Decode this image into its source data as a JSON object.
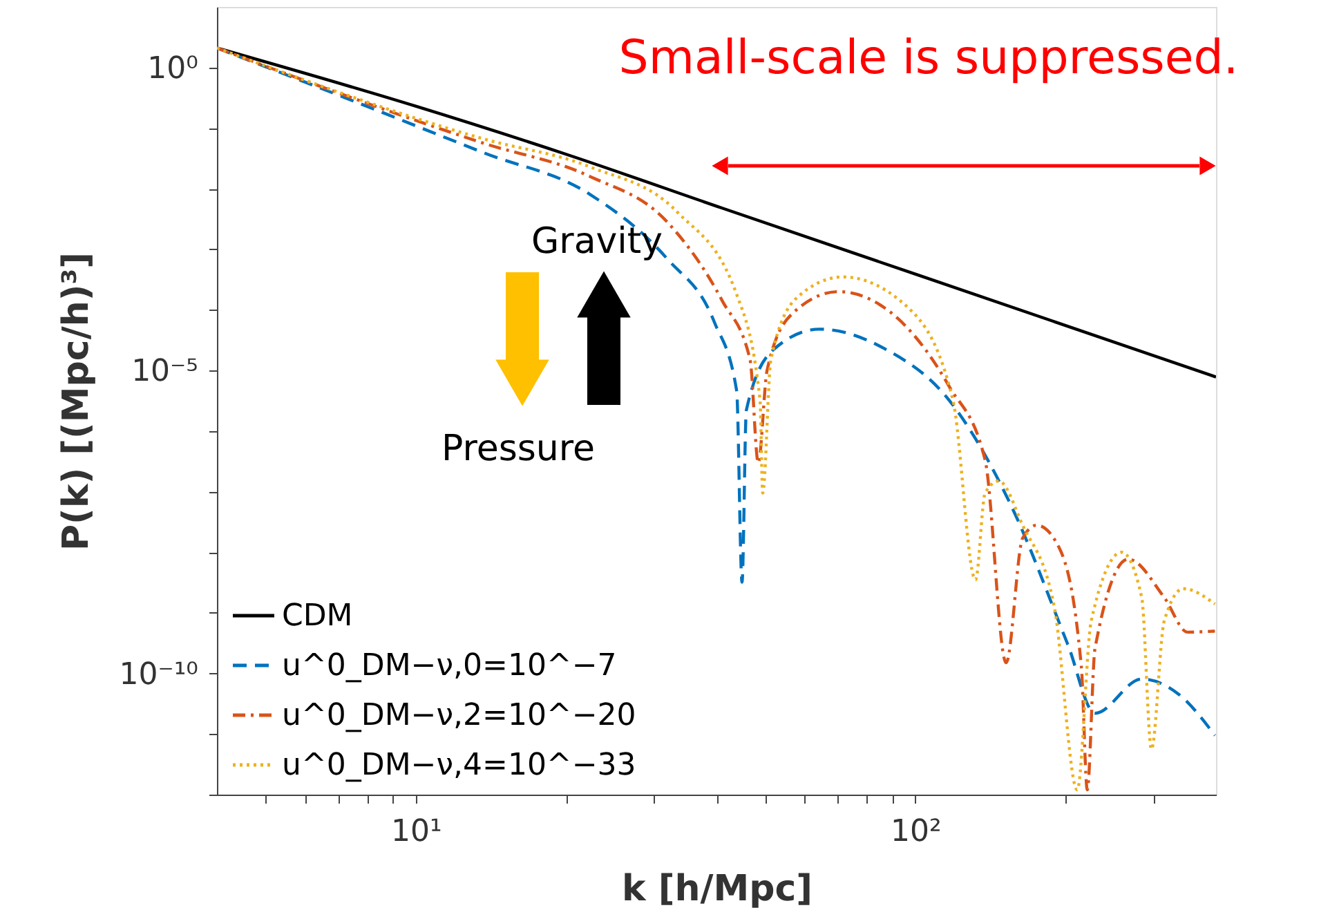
{
  "chart_data": {
    "type": "line",
    "xlabel": "k [h/Mpc]",
    "ylabel": "P(k) [(Mpc/h)³]",
    "log": "xy",
    "grid": false,
    "legend": "bottom left",
    "xlim": [
      4,
      400
    ],
    "ylim": [
      1e-12,
      10
    ],
    "xticks": [
      {
        "value": 5,
        "label": null
      },
      {
        "value": 6,
        "label": null
      },
      {
        "value": 7,
        "label": null
      },
      {
        "value": 8,
        "label": null
      },
      {
        "value": 9,
        "label": null
      },
      {
        "value": 10,
        "label": "10¹"
      },
      {
        "value": 20,
        "label": null
      },
      {
        "value": 30,
        "label": null
      },
      {
        "value": 40,
        "label": null
      },
      {
        "value": 50,
        "label": null
      },
      {
        "value": 60,
        "label": null
      },
      {
        "value": 70,
        "label": null
      },
      {
        "value": 80,
        "label": null
      },
      {
        "value": 90,
        "label": null
      },
      {
        "value": 100,
        "label": "10²"
      },
      {
        "value": 200,
        "label": null
      },
      {
        "value": 300,
        "label": null
      }
    ],
    "yticks": [
      {
        "value": 1e-12,
        "label": null
      },
      {
        "value": 1e-11,
        "label": null
      },
      {
        "value": 1e-10,
        "label": "10⁻¹⁰"
      },
      {
        "value": 1e-09,
        "label": null
      },
      {
        "value": 1e-08,
        "label": null
      },
      {
        "value": 1e-07,
        "label": null
      },
      {
        "value": 1e-06,
        "label": null
      },
      {
        "value": 1e-05,
        "label": "10⁻⁵"
      },
      {
        "value": 0.0001,
        "label": null
      },
      {
        "value": 0.001,
        "label": null
      },
      {
        "value": 0.01,
        "label": null
      },
      {
        "value": 0.1,
        "label": null
      },
      {
        "value": 1,
        "label": "10⁰"
      }
    ],
    "annotations": [
      "Small-scale is suppressed.",
      "Gravity",
      "Pressure"
    ],
    "series": [
      {
        "name": "CDM",
        "color": "#000000",
        "line_style": "solid",
        "x": [
          4,
          10,
          20,
          41,
          100,
          400
        ],
        "values": [
          2.1,
          0.23,
          0.037,
          0.0048,
          0.00039,
          7.8e-06
        ]
      },
      {
        "name": "u^0_DM−ν,0=10^−7",
        "color": "#0072bd",
        "line_style": "dashed",
        "x": [
          4,
          7.2,
          13.7,
          22.3,
          31.9,
          39.6,
          43.9,
          45.0,
          45.9,
          52.0,
          64.3,
          86.7,
          117,
          156,
          202,
          229,
          284,
          336,
          398
        ],
        "values": [
          2.1,
          0.32,
          0.039,
          0.0081,
          0.00069,
          6.3e-05,
          4.6e-06,
          3.2e-09,
          2.2e-06,
          2.2e-05,
          4.8e-05,
          2.3e-05,
          3.2e-06,
          5.6e-08,
          3e-10,
          2.2e-11,
          8.1e-11,
          4.6e-11,
          9.5e-12
        ]
      },
      {
        "name": "u^0_DM−ν,2=10^−20",
        "color": "#d95319",
        "line_style": "dashdot",
        "x": [
          4,
          13.7,
          22.3,
          31.9,
          41.1,
          46.7,
          48.5,
          50.5,
          56.6,
          70.2,
          92.3,
          117,
          138,
          152,
          164,
          175,
          194,
          215,
          221,
          229,
          267,
          315,
          351,
          398
        ],
        "values": [
          2.1,
          0.056,
          0.016,
          0.0028,
          0.00014,
          1.5e-05,
          3e-07,
          1e-05,
          8.5e-05,
          0.0002,
          7.2e-05,
          5.4e-06,
          3.3e-07,
          1.5e-10,
          1.7e-08,
          2.8e-08,
          1.2e-08,
          1.3e-10,
          1.2e-12,
          2.6e-10,
          7.7e-09,
          1.8e-09,
          4.8e-10,
          5e-10
        ]
      },
      {
        "name": "u^0_DM−ν,4=10^−33",
        "color": "#edb120",
        "line_style": "dotted",
        "x": [
          4,
          13.7,
          22.3,
          33.4,
          43.9,
          48.9,
          49.5,
          51.4,
          58.0,
          71.6,
          96.6,
          119,
          132,
          138,
          147,
          164,
          190,
          211,
          225,
          259,
          284,
          297,
          315,
          344,
          398
        ],
        "values": [
          2.1,
          0.066,
          0.023,
          0.0041,
          0.00018,
          3.2e-06,
          9.5e-08,
          1.5e-05,
          0.00016,
          0.00035,
          0.00011,
          3.2e-06,
          3.5e-09,
          9.5e-08,
          1.5e-07,
          2.8e-08,
          1.2e-09,
          1.2e-12,
          7.3e-10,
          1e-08,
          1.8e-09,
          5.6e-12,
          7.3e-10,
          2.5e-09,
          1.4e-09
        ]
      }
    ]
  }
}
